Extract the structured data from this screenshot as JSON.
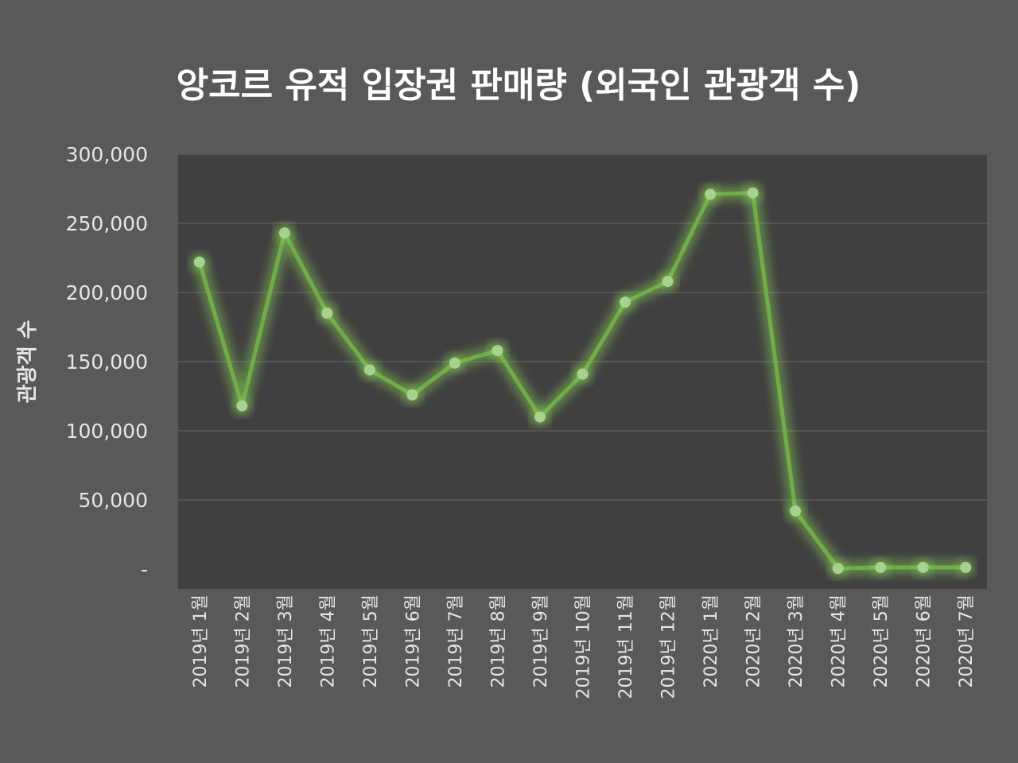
{
  "colors": {
    "background": "#595959",
    "plot_area": "#404040",
    "gridline": "#5a5a5a",
    "series_line": "#70ad47",
    "series_marker": "#a9d18e",
    "text": "#e6e6e6"
  },
  "chart_data": {
    "type": "line",
    "title": "앙코르 유적 입장권 판매량 (외국인 관광객 수)",
    "xlabel": "",
    "ylabel": "관광객 수",
    "ylim": [
      0,
      300000
    ],
    "yticks": [
      0,
      50000,
      100000,
      150000,
      200000,
      250000,
      300000
    ],
    "ytick_labels": [
      "-",
      "50,000",
      "100,000",
      "150,000",
      "200,000",
      "250,000",
      "300,000"
    ],
    "grid": true,
    "legend": "none",
    "categories": [
      "2019년 1월",
      "2019년 2월",
      "2019년 3월",
      "2019년 4월",
      "2019년 5월",
      "2019년 6월",
      "2019년 7월",
      "2019년 8월",
      "2019년 9월",
      "2019년 10월",
      "2019년 11월",
      "2019년 12월",
      "2020년 1월",
      "2020년 2월",
      "2020년 3월",
      "2020년 4월",
      "2020년 5월",
      "2020년 6월",
      "2020년 7월"
    ],
    "series": [
      {
        "values": [
          222000,
          118000,
          243000,
          185000,
          144000,
          126000,
          149000,
          158000,
          110000,
          141000,
          193000,
          208000,
          271000,
          272000,
          42000,
          500,
          1200,
          1200,
          1200
        ]
      }
    ]
  }
}
